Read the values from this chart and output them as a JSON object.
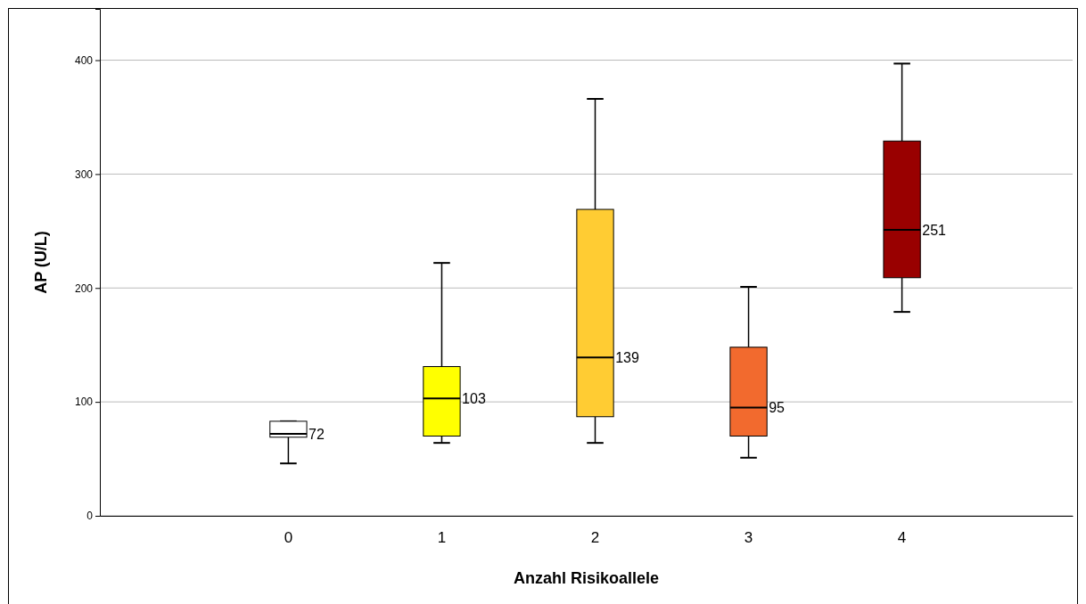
{
  "chart_data": {
    "type": "box",
    "xlabel": "Anzahl Risikoallele",
    "ylabel": "AP (U/L)",
    "categories": [
      "0",
      "1",
      "2",
      "3",
      "4"
    ],
    "boxes": [
      {
        "low": 46,
        "q1": 69,
        "median": 72,
        "q3": 83,
        "high": 83
      },
      {
        "low": 64,
        "q1": 70,
        "median": 103,
        "q3": 131,
        "high": 222
      },
      {
        "low": 64,
        "q1": 87,
        "median": 139,
        "q3": 269,
        "high": 366
      },
      {
        "low": 51,
        "q1": 70,
        "median": 95,
        "q3": 148,
        "high": 201
      },
      {
        "low": 179,
        "q1": 209,
        "median": 251,
        "q3": 329,
        "high": 397
      }
    ],
    "colors": [
      "#ffffff",
      "#ffff00",
      "#ffcc33",
      "#f26a2e",
      "#990000"
    ],
    "ylim": [
      0,
      445
    ],
    "yticks": [
      0,
      100,
      200,
      300,
      400
    ],
    "grid": "y",
    "value_labels": [
      "72",
      "103",
      "139",
      "95",
      "251"
    ]
  }
}
